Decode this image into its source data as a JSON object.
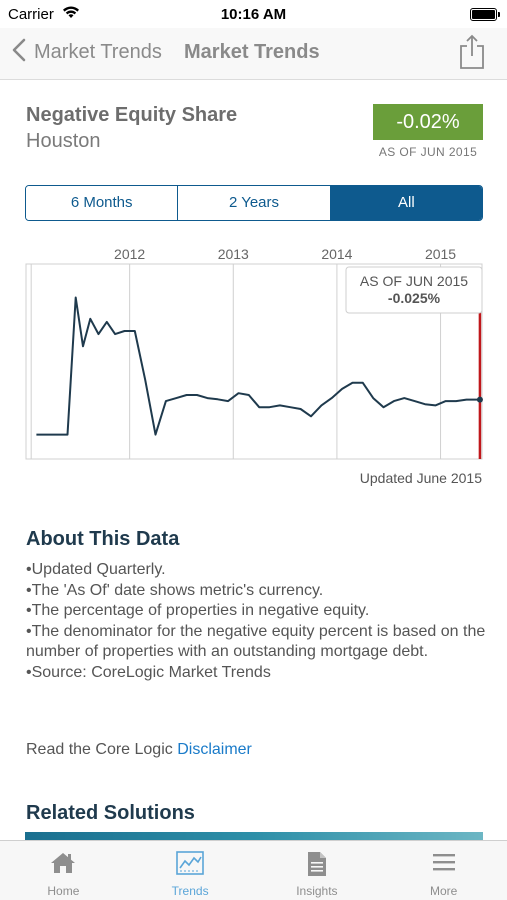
{
  "status": {
    "carrier": "Carrier",
    "time": "10:16 AM"
  },
  "nav": {
    "back_label": "Market Trends",
    "title": "Market Trends"
  },
  "metric": {
    "title": "Negative Equity Share",
    "subtitle": "Houston",
    "value": "-0.02%",
    "as_of": "AS OF JUN 2015",
    "badge_color": "#6a9e3a"
  },
  "ranges": [
    {
      "label": "6 Months",
      "active": false
    },
    {
      "label": "2 Years",
      "active": false
    },
    {
      "label": "All",
      "active": true
    }
  ],
  "chart_data": {
    "type": "line",
    "x_tick_labels": [
      "2012",
      "2013",
      "2014",
      "2015"
    ],
    "series": [
      {
        "color": "#1f3a4d",
        "x": [
          2011.1,
          2011.25,
          2011.4,
          2011.48,
          2011.55,
          2011.62,
          2011.7,
          2011.78,
          2011.86,
          2011.95,
          2012.05,
          2012.15,
          2012.25,
          2012.35,
          2012.45,
          2012.55,
          2012.65,
          2012.75,
          2012.85,
          2012.95,
          2013.05,
          2013.15,
          2013.25,
          2013.35,
          2013.45,
          2013.55,
          2013.65,
          2013.75,
          2013.85,
          2013.95,
          2014.05,
          2014.15,
          2014.25,
          2014.35,
          2014.45,
          2014.55,
          2014.65,
          2014.75,
          2014.85,
          2014.95,
          2015.05,
          2015.15,
          2015.25,
          2015.33,
          2015.38
        ],
        "y": [
          -0.6,
          -0.6,
          -0.6,
          1.65,
          0.85,
          1.3,
          1.05,
          1.25,
          1.05,
          1.1,
          1.1,
          0.3,
          -0.6,
          -0.05,
          0.0,
          0.05,
          0.05,
          0.0,
          -0.02,
          -0.05,
          0.08,
          0.05,
          -0.15,
          -0.15,
          -0.12,
          -0.15,
          -0.18,
          -0.3,
          -0.12,
          0.0,
          0.15,
          0.25,
          0.25,
          0.0,
          -0.15,
          -0.05,
          0.0,
          -0.05,
          -0.1,
          -0.12,
          -0.05,
          -0.05,
          -0.025,
          -0.025,
          -0.025
        ]
      }
    ],
    "xlim": [
      2011.0,
      2015.4
    ],
    "ylim": [
      -1.0,
      2.2
    ],
    "grid": true,
    "cursor": {
      "x": 2015.38,
      "color": "#c0171b"
    },
    "tooltip": {
      "title": "AS OF JUN 2015",
      "value": "-0.025%"
    }
  },
  "updated_text": "Updated June 2015",
  "about": {
    "title": "About This Data",
    "items": [
      "Updated Quarterly.",
      "The 'As Of' date shows metric's currency.",
      "The percentage of properties in negative equity.",
      "The denominator for the negative equity percent is based on the number of properties with an outstanding mortgage debt.",
      "Source: CoreLogic Market Trends"
    ]
  },
  "disclaimer": {
    "prefix": "Read the Core Logic ",
    "link": "Disclaimer"
  },
  "related": {
    "title": "Related Solutions"
  },
  "tabs": [
    {
      "label": "Home",
      "icon": "home-icon",
      "active": false
    },
    {
      "label": "Trends",
      "icon": "trends-icon",
      "active": true
    },
    {
      "label": "Insights",
      "icon": "insights-icon",
      "active": false
    },
    {
      "label": "More",
      "icon": "more-icon",
      "active": false
    }
  ]
}
